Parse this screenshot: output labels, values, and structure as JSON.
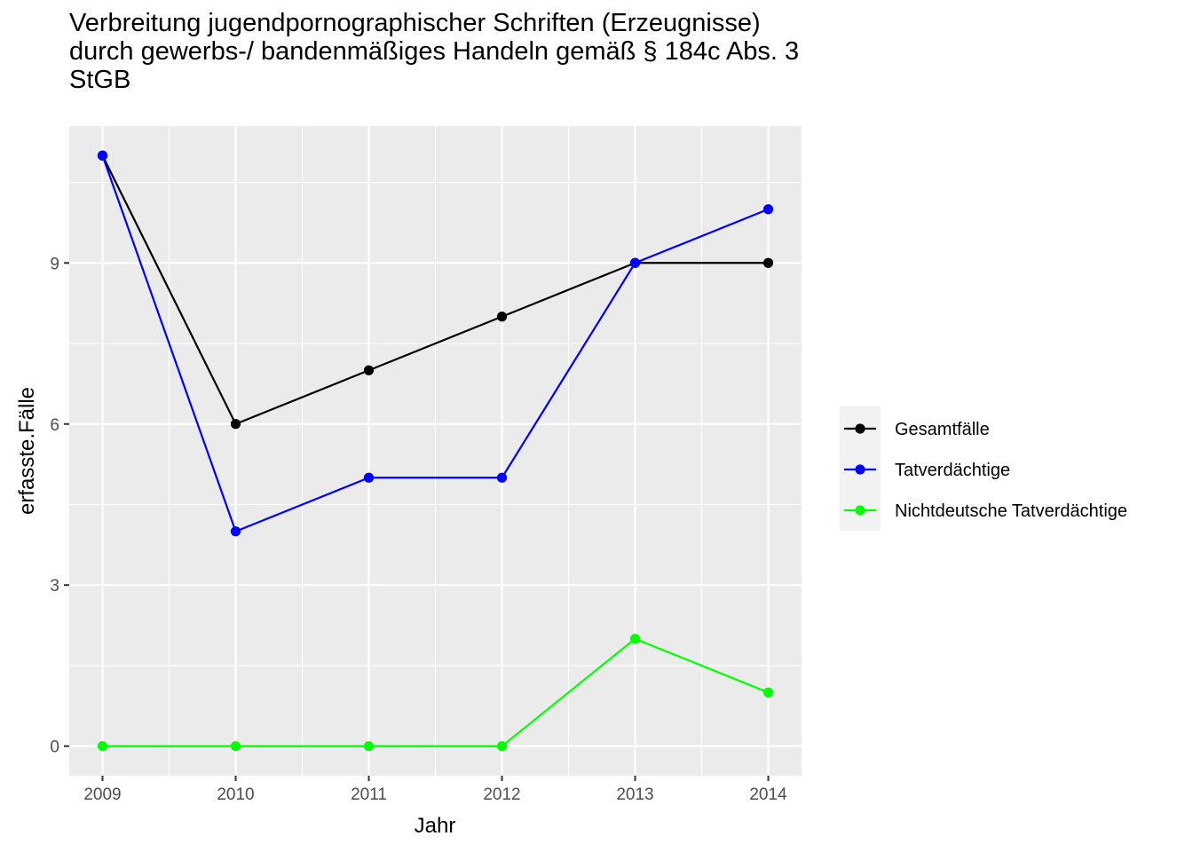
{
  "chart_data": {
    "type": "line",
    "title_lines": [
      "Verbreitung jugendpornographischer Schriften (Erzeugnisse)",
      "durch gewerbs-/ bandenmäßiges Handeln gemäß § 184c Abs. 3",
      "StGB"
    ],
    "xlabel": "Jahr",
    "ylabel": "erfasste.Fälle",
    "x": [
      2009,
      2010,
      2011,
      2012,
      2013,
      2014
    ],
    "x_tick_labels": [
      "2009",
      "2010",
      "2011",
      "2012",
      "2013",
      "2014"
    ],
    "y_ticks": [
      0,
      3,
      6,
      9
    ],
    "y_tick_labels": [
      "0",
      "3",
      "6",
      "9"
    ],
    "xlim": [
      2008.75,
      2014.25
    ],
    "ylim": [
      -0.55,
      11.55
    ],
    "grid": true,
    "legend_position": "right",
    "series": [
      {
        "name": "Gesamtfälle",
        "color": "#000000",
        "values": [
          11,
          6,
          7,
          8,
          9,
          9
        ]
      },
      {
        "name": "Tatverdächtige",
        "color": "#0000ff",
        "values": [
          11,
          4,
          5,
          5,
          9,
          10
        ]
      },
      {
        "name": "Nichtdeutsche Tatverdächtige",
        "color": "#00ff00",
        "values": [
          0,
          0,
          0,
          0,
          2,
          1
        ]
      }
    ]
  }
}
